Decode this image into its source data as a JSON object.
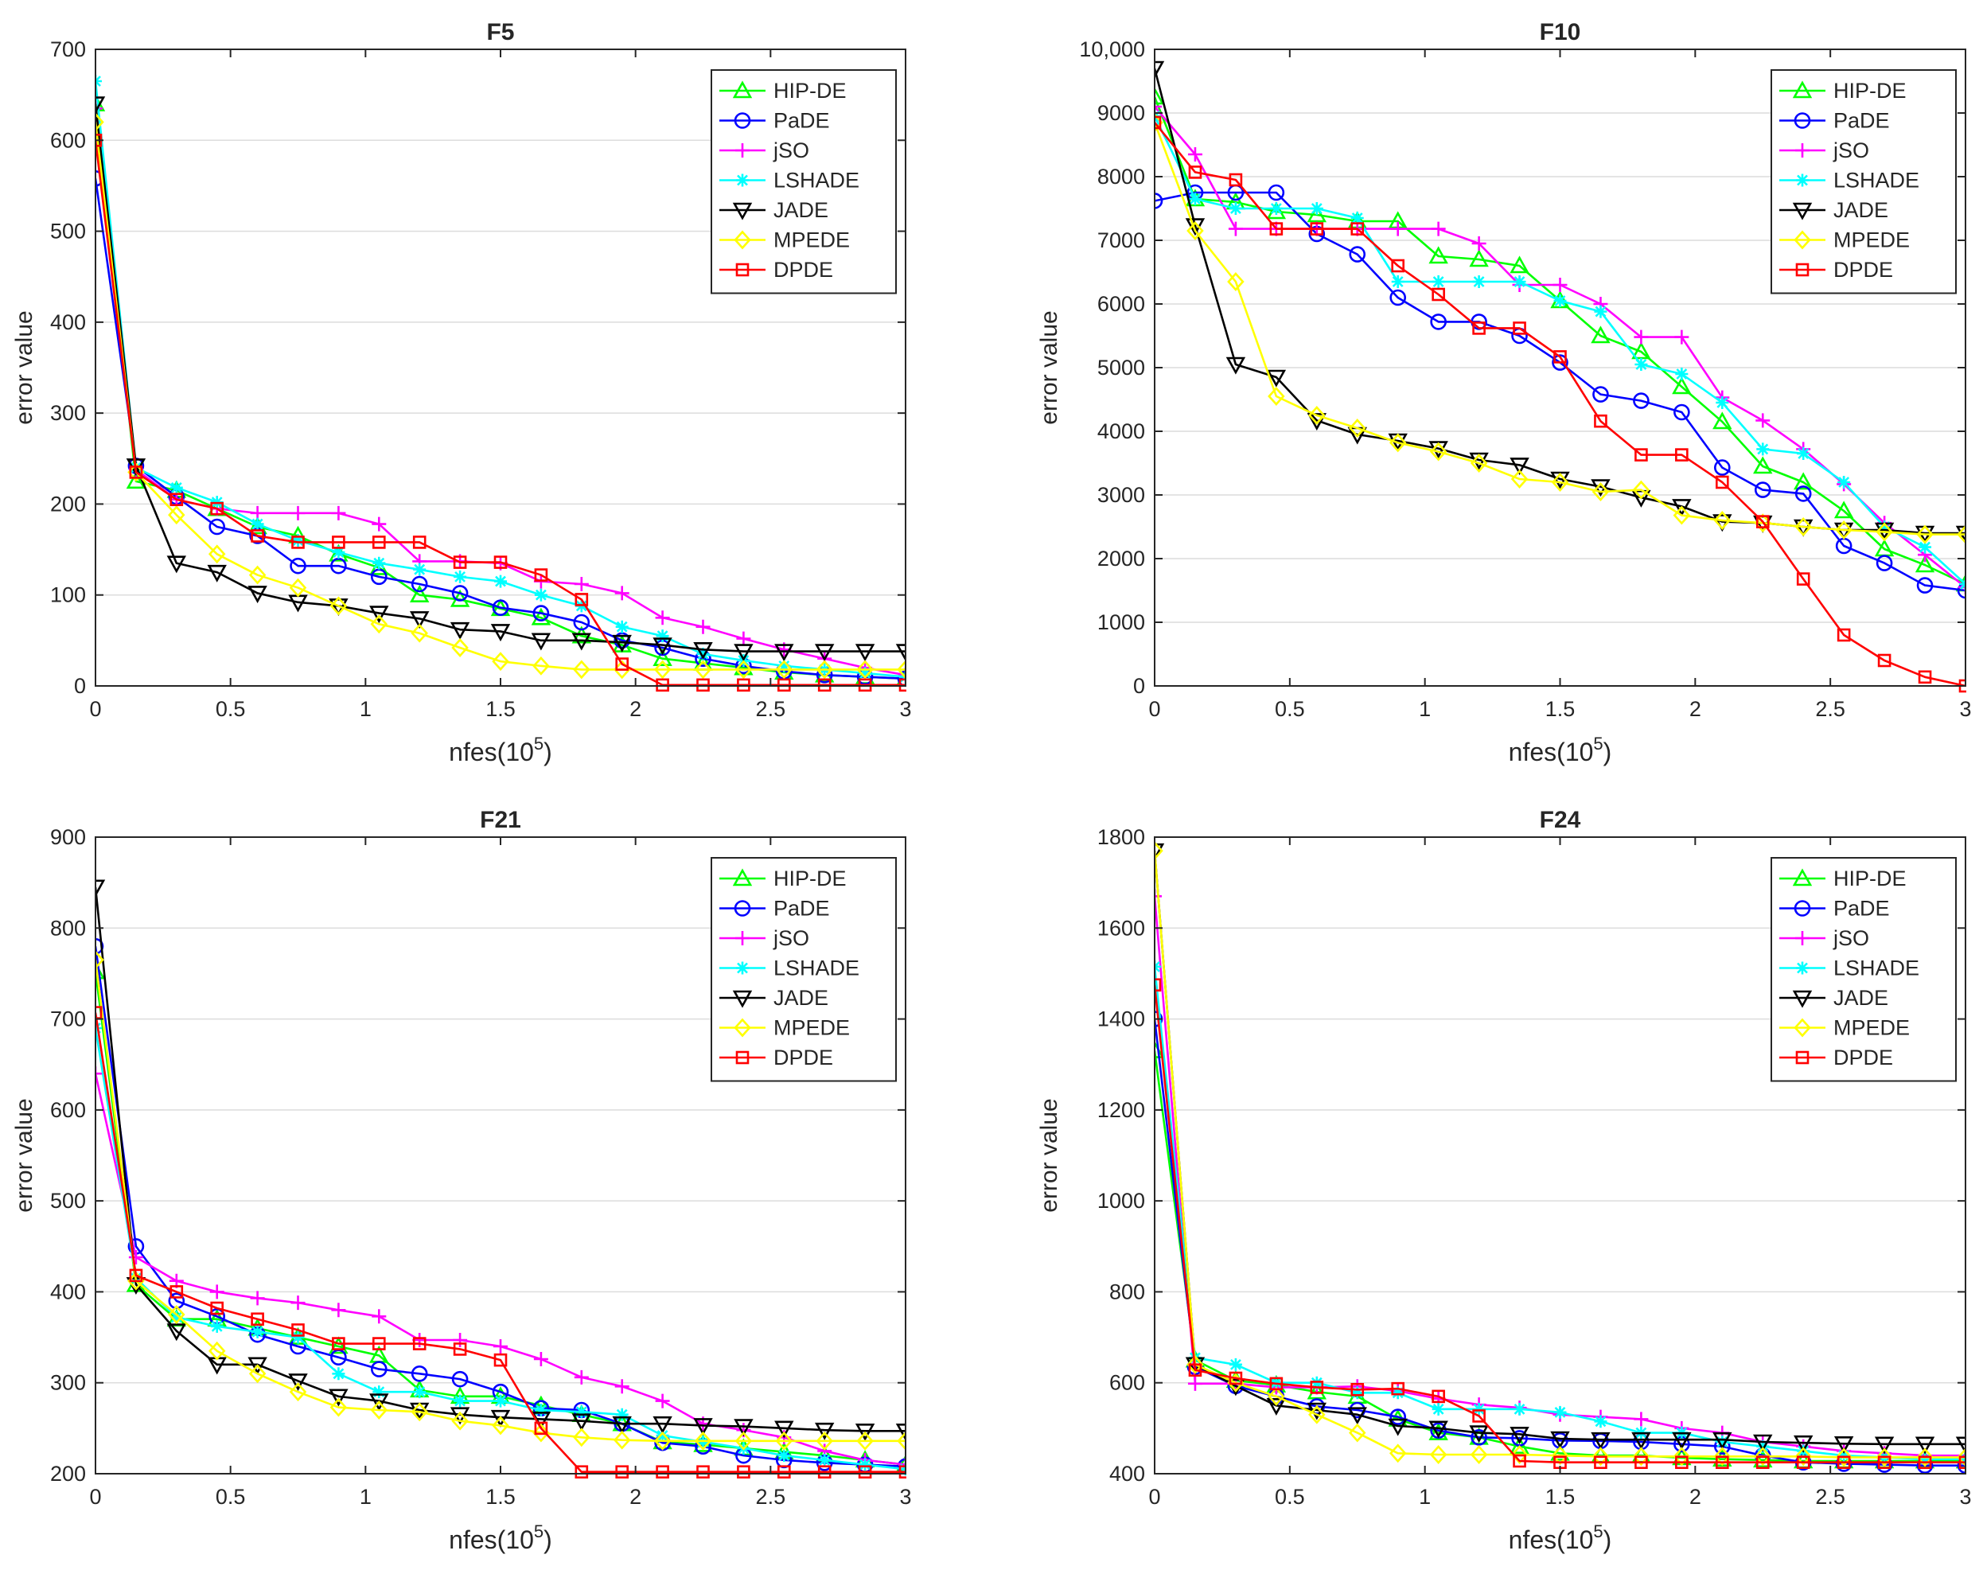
{
  "x_label_base": "nfes(10",
  "x_label_exp": "5",
  "x_label_close": ")",
  "chart_data": [
    {
      "type": "line",
      "title": "F5",
      "xlabel": "nfes(10^5)",
      "ylabel": "error value",
      "xlim": [
        0,
        3
      ],
      "ylim": [
        0,
        700
      ],
      "xticks": [
        0,
        0.5,
        1,
        1.5,
        2,
        2.5,
        3
      ],
      "xtick_labels": [
        "0",
        "0.5",
        "1",
        "1.5",
        "2",
        "2.5",
        "3"
      ],
      "yticks": [
        0,
        100,
        200,
        300,
        400,
        500,
        600,
        700
      ],
      "ytick_labels": [
        "0",
        "100",
        "200",
        "300",
        "400",
        "500",
        "600",
        "700"
      ],
      "grid": true,
      "legend": "top-right",
      "x": [
        0,
        0.15,
        0.3,
        0.45,
        0.6,
        0.75,
        0.9,
        1.05,
        1.2,
        1.35,
        1.5,
        1.65,
        1.8,
        1.95,
        2.1,
        2.25,
        2.4,
        2.55,
        2.7,
        2.85,
        3.0
      ],
      "series": [
        {
          "name": "HIP-DE",
          "values": [
            640,
            225,
            215,
            195,
            175,
            165,
            145,
            130,
            100,
            95,
            85,
            75,
            55,
            45,
            30,
            25,
            20,
            15,
            12,
            10,
            8
          ]
        },
        {
          "name": "PaDE",
          "values": [
            558,
            242,
            208,
            175,
            165,
            132,
            132,
            120,
            112,
            102,
            86,
            80,
            70,
            50,
            42,
            30,
            22,
            16,
            12,
            10,
            8
          ]
        },
        {
          "name": "jSO",
          "values": [
            635,
            238,
            205,
            195,
            190,
            190,
            190,
            178,
            137,
            137,
            135,
            115,
            112,
            102,
            75,
            65,
            52,
            40,
            30,
            20,
            12
          ]
        },
        {
          "name": "LSHADE",
          "values": [
            665,
            240,
            218,
            202,
            178,
            160,
            147,
            135,
            128,
            120,
            115,
            100,
            88,
            65,
            55,
            35,
            28,
            22,
            18,
            14,
            10
          ]
        },
        {
          "name": "JADE",
          "values": [
            640,
            242,
            135,
            125,
            102,
            92,
            88,
            80,
            74,
            62,
            60,
            50,
            50,
            48,
            45,
            40,
            38,
            38,
            38,
            38,
            38
          ]
        },
        {
          "name": "MPEDE",
          "values": [
            620,
            235,
            188,
            145,
            122,
            108,
            88,
            68,
            58,
            42,
            27,
            22,
            18,
            18,
            18,
            18,
            18,
            18,
            18,
            18,
            18
          ]
        },
        {
          "name": "DPDE",
          "values": [
            600,
            235,
            205,
            195,
            165,
            158,
            158,
            158,
            158,
            136,
            136,
            122,
            95,
            24,
            1,
            1,
            1,
            1,
            1,
            1,
            1
          ]
        }
      ]
    },
    {
      "type": "line",
      "title": "F10",
      "xlabel": "nfes(10^5)",
      "ylabel": "error value",
      "xlim": [
        0,
        3
      ],
      "ylim": [
        0,
        10000
      ],
      "xticks": [
        0,
        0.5,
        1,
        1.5,
        2,
        2.5,
        3
      ],
      "xtick_labels": [
        "0",
        "0.5",
        "1",
        "1.5",
        "2",
        "2.5",
        "3"
      ],
      "yticks": [
        0,
        1000,
        2000,
        3000,
        4000,
        5000,
        6000,
        7000,
        8000,
        9000,
        10000
      ],
      "ytick_labels": [
        "0",
        "1000",
        "2000",
        "3000",
        "4000",
        "5000",
        "6000",
        "7000",
        "8000",
        "9000",
        "10,000"
      ],
      "grid": true,
      "legend": "top-right",
      "x": [
        0,
        0.15,
        0.3,
        0.45,
        0.6,
        0.75,
        0.9,
        1.05,
        1.2,
        1.35,
        1.5,
        1.65,
        1.8,
        1.95,
        2.1,
        2.25,
        2.4,
        2.55,
        2.7,
        2.85,
        3.0
      ],
      "series": [
        {
          "name": "HIP-DE",
          "values": [
            9250,
            7650,
            7600,
            7450,
            7400,
            7300,
            7300,
            6750,
            6700,
            6600,
            6050,
            5500,
            5250,
            4700,
            4150,
            3450,
            3200,
            2750,
            2150,
            1900,
            1600
          ]
        },
        {
          "name": "PaDE",
          "values": [
            7620,
            7750,
            7750,
            7750,
            7100,
            6780,
            6100,
            5720,
            5720,
            5500,
            5080,
            4580,
            4480,
            4300,
            3430,
            3080,
            3020,
            2200,
            1930,
            1580,
            1500
          ]
        },
        {
          "name": "jSO",
          "values": [
            9100,
            8350,
            7180,
            7180,
            7180,
            7180,
            7180,
            7180,
            6950,
            6300,
            6300,
            6000,
            5480,
            5480,
            4530,
            4170,
            3720,
            3170,
            2560,
            2060,
            1550
          ]
        },
        {
          "name": "LSHADE",
          "values": [
            8950,
            7650,
            7500,
            7500,
            7500,
            7350,
            6350,
            6350,
            6350,
            6350,
            6050,
            5880,
            5050,
            4900,
            4450,
            3720,
            3650,
            3200,
            2500,
            2180,
            1600
          ]
        },
        {
          "name": "JADE",
          "values": [
            9700,
            7230,
            5050,
            4850,
            4170,
            3950,
            3850,
            3730,
            3550,
            3470,
            3250,
            3130,
            2960,
            2820,
            2580,
            2560,
            2500,
            2450,
            2450,
            2400,
            2400
          ]
        },
        {
          "name": "MPEDE",
          "values": [
            8850,
            7150,
            6350,
            4550,
            4250,
            4050,
            3820,
            3680,
            3500,
            3250,
            3200,
            3050,
            3080,
            2680,
            2600,
            2560,
            2500,
            2450,
            2420,
            2380,
            2380
          ]
        },
        {
          "name": "DPDE",
          "values": [
            8850,
            8070,
            7950,
            7180,
            7180,
            7180,
            6600,
            6150,
            5620,
            5620,
            5170,
            4160,
            3630,
            3630,
            3200,
            2580,
            1680,
            800,
            400,
            140,
            0
          ]
        }
      ]
    },
    {
      "type": "line",
      "title": "F21",
      "xlabel": "nfes(10^5)",
      "ylabel": "error value",
      "xlim": [
        0,
        3
      ],
      "ylim": [
        200,
        900
      ],
      "xticks": [
        0,
        0.5,
        1,
        1.5,
        2,
        2.5,
        3
      ],
      "xtick_labels": [
        "0",
        "0.5",
        "1",
        "1.5",
        "2",
        "2.5",
        "3"
      ],
      "yticks": [
        200,
        300,
        400,
        500,
        600,
        700,
        800,
        900
      ],
      "ytick_labels": [
        "200",
        "300",
        "400",
        "500",
        "600",
        "700",
        "800",
        "900"
      ],
      "grid": true,
      "legend": "top-right",
      "x": [
        0,
        0.15,
        0.3,
        0.45,
        0.6,
        0.75,
        0.9,
        1.05,
        1.2,
        1.35,
        1.5,
        1.65,
        1.8,
        1.95,
        2.1,
        2.25,
        2.4,
        2.55,
        2.7,
        2.85,
        3.0
      ],
      "series": [
        {
          "name": "HIP-DE",
          "values": [
            752,
            408,
            370,
            370,
            360,
            350,
            340,
            330,
            292,
            285,
            285,
            275,
            265,
            255,
            235,
            232,
            228,
            224,
            220,
            215,
            210
          ]
        },
        {
          "name": "PaDE",
          "values": [
            780,
            450,
            390,
            373,
            353,
            340,
            328,
            315,
            310,
            304,
            290,
            272,
            270,
            255,
            234,
            230,
            220,
            215,
            212,
            210,
            208
          ]
        },
        {
          "name": "jSO",
          "values": [
            640,
            438,
            412,
            400,
            393,
            388,
            380,
            373,
            347,
            347,
            340,
            326,
            306,
            296,
            280,
            255,
            248,
            240,
            225,
            215,
            210
          ]
        },
        {
          "name": "LSHADE",
          "values": [
            690,
            415,
            372,
            362,
            356,
            350,
            310,
            290,
            290,
            280,
            280,
            270,
            268,
            265,
            242,
            235,
            228,
            220,
            215,
            210,
            205
          ]
        },
        {
          "name": "JADE",
          "values": [
            845,
            408,
            357,
            320,
            320,
            302,
            285,
            280,
            270,
            265,
            262,
            260,
            258,
            255,
            255,
            253,
            252,
            250,
            248,
            247,
            247
          ]
        },
        {
          "name": "MPEDE",
          "values": [
            765,
            412,
            375,
            335,
            310,
            290,
            273,
            270,
            268,
            258,
            253,
            245,
            240,
            237,
            236,
            236,
            236,
            236,
            236,
            236,
            236
          ]
        },
        {
          "name": "DPDE",
          "values": [
            707,
            418,
            400,
            382,
            370,
            358,
            343,
            343,
            343,
            337,
            325,
            250,
            202,
            202,
            202,
            202,
            202,
            202,
            202,
            202,
            202
          ]
        }
      ]
    },
    {
      "type": "line",
      "title": "F24",
      "xlabel": "nfes(10^5)",
      "ylabel": "error value",
      "xlim": [
        0,
        3
      ],
      "ylim": [
        400,
        1800
      ],
      "xticks": [
        0,
        0.5,
        1,
        1.5,
        2,
        2.5,
        3
      ],
      "xtick_labels": [
        "0",
        "0.5",
        "1",
        "1.5",
        "2",
        "2.5",
        "3"
      ],
      "yticks": [
        400,
        600,
        800,
        1000,
        1200,
        1400,
        1600,
        1800
      ],
      "ytick_labels": [
        "400",
        "600",
        "800",
        "1000",
        "1200",
        "1400",
        "1600",
        "1800"
      ],
      "grid": true,
      "legend": "top-right",
      "x": [
        0,
        0.15,
        0.3,
        0.45,
        0.6,
        0.75,
        0.9,
        1.05,
        1.2,
        1.35,
        1.5,
        1.65,
        1.8,
        1.95,
        2.1,
        2.25,
        2.4,
        2.55,
        2.7,
        2.85,
        3.0
      ],
      "series": [
        {
          "name": "HIP-DE",
          "values": [
            1330,
            650,
            605,
            595,
            580,
            570,
            520,
            490,
            480,
            460,
            445,
            440,
            440,
            435,
            432,
            430,
            428,
            428,
            428,
            428,
            428
          ]
        },
        {
          "name": "PaDE",
          "values": [
            1400,
            635,
            593,
            570,
            548,
            540,
            525,
            495,
            480,
            478,
            473,
            472,
            470,
            465,
            460,
            440,
            425,
            422,
            420,
            418,
            418
          ]
        },
        {
          "name": "jSO",
          "values": [
            1670,
            598,
            598,
            590,
            590,
            592,
            582,
            565,
            552,
            545,
            530,
            525,
            520,
            500,
            490,
            470,
            460,
            450,
            445,
            440,
            440
          ]
        },
        {
          "name": "LSHADE",
          "values": [
            1515,
            655,
            640,
            600,
            600,
            578,
            578,
            542,
            542,
            542,
            535,
            515,
            490,
            490,
            470,
            460,
            450,
            440,
            436,
            432,
            432
          ]
        },
        {
          "name": "JADE",
          "values": [
            1770,
            640,
            593,
            550,
            540,
            530,
            505,
            500,
            490,
            487,
            477,
            475,
            475,
            475,
            475,
            470,
            468,
            466,
            465,
            465,
            465
          ]
        },
        {
          "name": "MPEDE",
          "values": [
            1770,
            640,
            600,
            570,
            530,
            490,
            445,
            442,
            442,
            442,
            440,
            438,
            438,
            438,
            438,
            438,
            438,
            436,
            436,
            436,
            436
          ]
        },
        {
          "name": "DPDE",
          "values": [
            1475,
            628,
            610,
            598,
            590,
            585,
            587,
            570,
            527,
            428,
            425,
            425,
            425,
            425,
            425,
            425,
            425,
            425,
            425,
            425,
            425
          ]
        }
      ]
    }
  ],
  "series_style": [
    {
      "name": "HIP-DE",
      "color": "#00ff00",
      "marker": "triangle-up"
    },
    {
      "name": "PaDE",
      "color": "#0000ff",
      "marker": "circle"
    },
    {
      "name": "jSO",
      "color": "#ff00ff",
      "marker": "plus"
    },
    {
      "name": "LSHADE",
      "color": "#00ffff",
      "marker": "asterisk"
    },
    {
      "name": "JADE",
      "color": "#000000",
      "marker": "triangle-down"
    },
    {
      "name": "MPEDE",
      "color": "#ffff00",
      "marker": "diamond"
    },
    {
      "name": "DPDE",
      "color": "#ff0000",
      "marker": "square"
    }
  ]
}
